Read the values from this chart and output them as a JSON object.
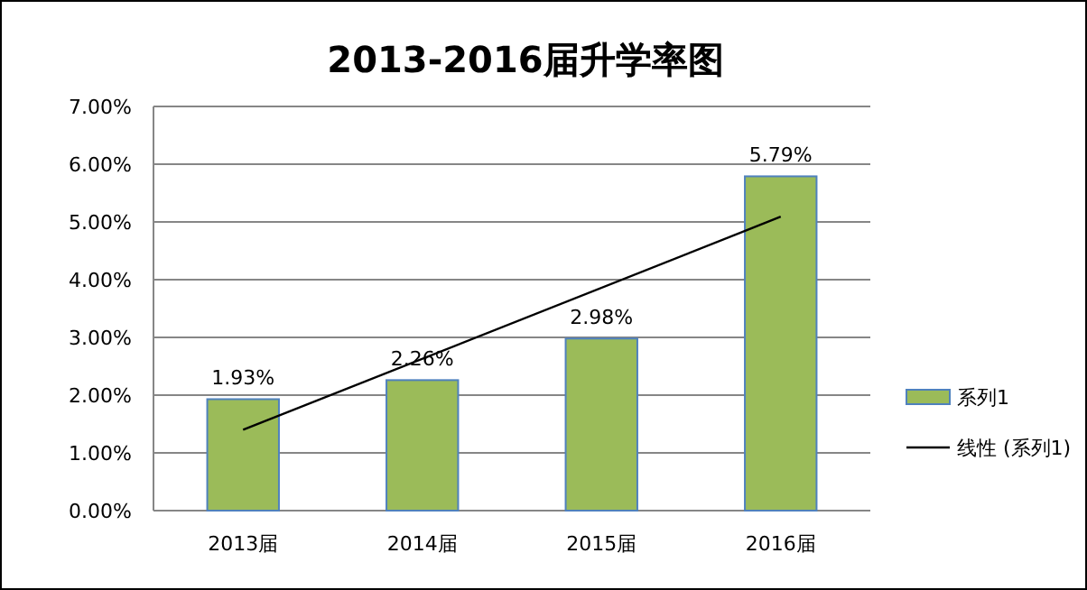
{
  "chart_data": {
    "type": "bar",
    "title": "2013-2016届升学率图",
    "categories": [
      "2013届",
      "2014届",
      "2015届",
      "2016届"
    ],
    "series": [
      {
        "name": "系列1",
        "color": "#9bbb59",
        "values": [
          1.93,
          2.26,
          2.98,
          5.79
        ],
        "value_labels": [
          "1.93%",
          "2.26%",
          "2.98%",
          "5.79%"
        ]
      },
      {
        "name": "线性 (系列1)",
        "type": "line",
        "color": "#000000",
        "x": [
          "2013届",
          "2016届"
        ],
        "values": [
          1.4,
          5.09
        ]
      }
    ],
    "ylim": [
      0,
      7
    ],
    "yticks": [
      {
        "value": 0,
        "label": "0.00%"
      },
      {
        "value": 1,
        "label": "1.00%"
      },
      {
        "value": 2,
        "label": "2.00%"
      },
      {
        "value": 3,
        "label": "3.00%"
      },
      {
        "value": 4,
        "label": "4.00%"
      },
      {
        "value": 5,
        "label": "5.00%"
      },
      {
        "value": 6,
        "label": "6.00%"
      },
      {
        "value": 7,
        "label": "7.00%"
      }
    ],
    "grid": "y",
    "legend": "right"
  }
}
